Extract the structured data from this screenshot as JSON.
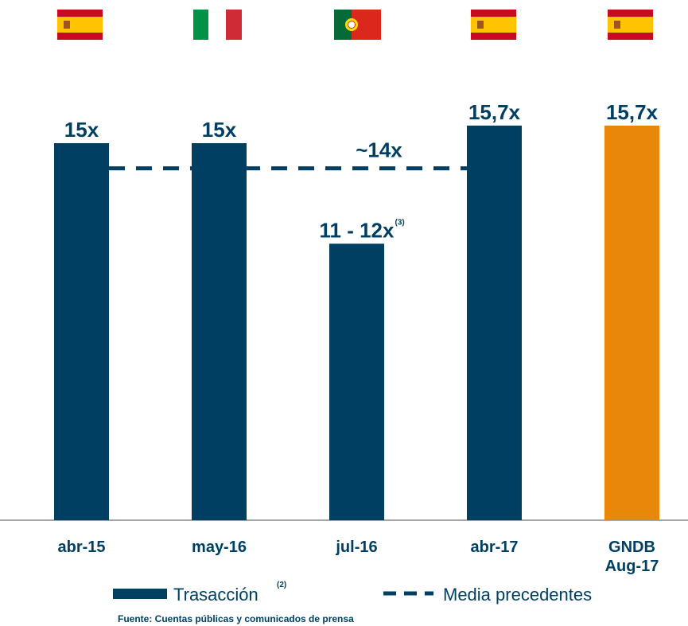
{
  "chart_data": {
    "type": "bar",
    "categories": [
      "abr-15",
      "may-16",
      "jul-16",
      "abr-17",
      "GNDB\nAug-17"
    ],
    "series": [
      {
        "name": "Trasacción",
        "name_note": "(2)",
        "colors": [
          "#003f62",
          "#003f62",
          "#003f62",
          "#003f62",
          "#e8870a"
        ],
        "values": [
          15,
          15,
          11,
          15.7,
          15.7
        ],
        "value_labels": [
          "15x",
          "15x",
          "11 - 12x",
          "15,7x",
          "15,7x"
        ],
        "value_label_notes": [
          null,
          null,
          "(3)",
          null,
          null
        ]
      }
    ],
    "reference_line": {
      "name": "Media precedentes",
      "value": 14,
      "label": "~14x",
      "color": "#003f62"
    },
    "ylim": [
      0,
      20
    ],
    "source": "Fuente: Cuentas públicas y comunicados de prensa"
  }
}
